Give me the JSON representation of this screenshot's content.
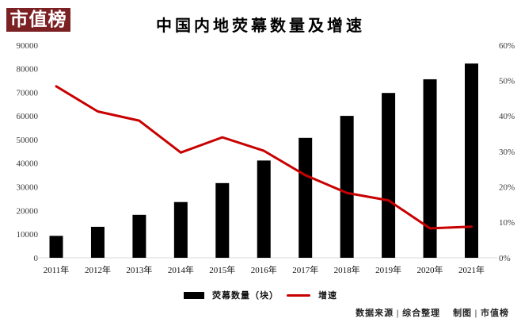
{
  "logo": {
    "text": "市值榜",
    "bg_color": "#7b2124",
    "text_color": "#ffffff"
  },
  "title": "中国内地荧幕数量及增速",
  "legend": [
    {
      "label": "荧幕数量（块）",
      "swatch": "bar",
      "color": "#000000"
    },
    {
      "label": "增速",
      "swatch": "line",
      "color": "#c80000"
    }
  ],
  "footer": {
    "left": "数据来源 | 综合整理",
    "right": "制图 | 市值榜"
  },
  "chart_data": {
    "type": "bar",
    "combo": "bar+line",
    "title": "中国内地荧幕数量及增速",
    "categories": [
      "2011年",
      "2012年",
      "2013年",
      "2014年",
      "2015年",
      "2016年",
      "2017年",
      "2018年",
      "2019年",
      "2020年",
      "2021年"
    ],
    "series": [
      {
        "name": "荧幕数量（块）",
        "type": "bar",
        "axis": "left",
        "color": "#000000",
        "values": [
          9286,
          13118,
          18195,
          23600,
          31627,
          41179,
          50776,
          60079,
          69787,
          75581,
          82248
        ]
      },
      {
        "name": "增速",
        "type": "line",
        "axis": "right",
        "color": "#c80000",
        "values_percent": [
          48.4,
          41.3,
          38.7,
          29.7,
          34.0,
          30.2,
          23.3,
          18.3,
          16.2,
          8.3,
          8.8
        ]
      }
    ],
    "y_left": {
      "min": 0,
      "max": 90000,
      "step": 10000,
      "tick_labels": [
        "0",
        "10000",
        "20000",
        "30000",
        "40000",
        "50000",
        "60000",
        "70000",
        "80000",
        "90000"
      ]
    },
    "y_right": {
      "min": 0,
      "max": 60,
      "step": 10,
      "tick_labels": [
        "0%",
        "10%",
        "20%",
        "30%",
        "40%",
        "50%",
        "60%"
      ]
    },
    "grid": false,
    "axis_line_color": "#d9d9d9",
    "legend_position": "bottom-center"
  }
}
